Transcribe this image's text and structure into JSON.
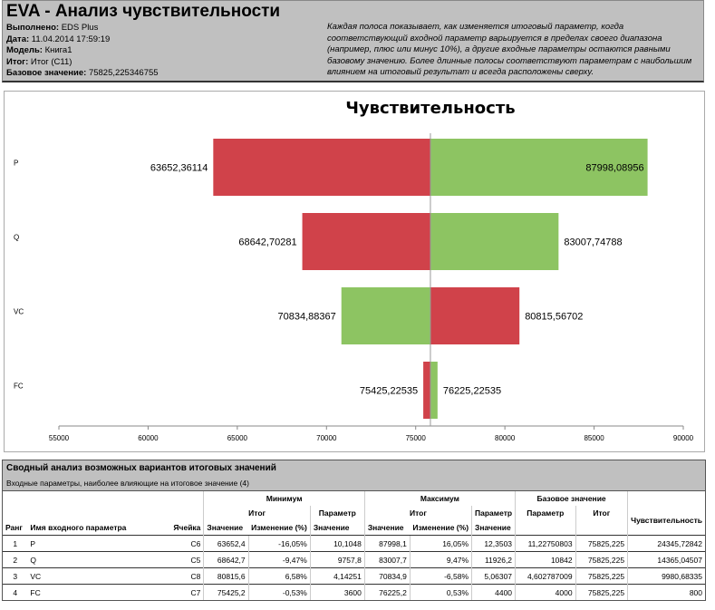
{
  "header": {
    "title": "EVA - Анализ чувствительности",
    "meta": [
      {
        "label": "Выполнено:",
        "value": "EDS Plus"
      },
      {
        "label": "Дата:",
        "value": "11.04.2014 17:59:19"
      },
      {
        "label": "Модель:",
        "value": "Книга1"
      },
      {
        "label": "Итог:",
        "value": "Итог (C11)"
      },
      {
        "label": "Базовое значение:",
        "value": "75825,225346755"
      }
    ],
    "description": "Каждая полоса показывает, как изменяется итоговый параметр, когда соответствующий входной параметр варьируется в пределах своего диапазона (например, плюс или минус 10%), а другие входные параметры остаются равными базовому значению. Более длинные полосы соответствуют параметрам с наибольшим влиянием на итоговый результат и всегда расположены сверху."
  },
  "chart_data": {
    "type": "bar",
    "title": "Чувствительность",
    "base": 75825.225,
    "xlim": [
      55000,
      90000
    ],
    "xticks": [
      "55000",
      "60000",
      "65000",
      "70000",
      "75000",
      "80000",
      "85000",
      "90000"
    ],
    "categories": [
      "P",
      "Q",
      "VC",
      "FC"
    ],
    "left": [
      {
        "value": 63652.36114,
        "label": "63652,36114",
        "color": "#d0424a"
      },
      {
        "value": 68642.70281,
        "label": "68642,70281",
        "color": "#d0424a"
      },
      {
        "value": 70834.88367,
        "label": "70834,88367",
        "color": "#8dc462"
      },
      {
        "value": 75425.22535,
        "label": "75425,22535",
        "color": "#d0424a"
      }
    ],
    "right": [
      {
        "value": 87998.08956,
        "label": "87998,08956",
        "color": "#8dc462"
      },
      {
        "value": 83007.74788,
        "label": "83007,74788",
        "color": "#8dc462"
      },
      {
        "value": 80815.56702,
        "label": "80815,56702",
        "color": "#d0424a"
      },
      {
        "value": 76225.22535,
        "label": "76225,22535",
        "color": "#8dc462"
      }
    ]
  },
  "table": {
    "title": "Сводный анализ возможных вариантов итоговых значений",
    "subtitle": "Входные параметры, наиболее влияющие на итоговое значение (4)",
    "h": {
      "min": "Минимум",
      "max": "Максимум",
      "base": "Базовое значение",
      "itog": "Итог",
      "param": "Параметр",
      "sens": "Чувствительность",
      "rank": "Ранг",
      "name": "Имя входного параметра",
      "cell": "Ячейка",
      "value": "Значение",
      "change": "Изменение (%)"
    },
    "rows": [
      [
        "1",
        "P",
        "C6",
        "63652,4",
        "-16,05%",
        "10,1048",
        "87998,1",
        "16,05%",
        "12,3503",
        "11,22750803",
        "75825,225",
        "24345,72842"
      ],
      [
        "2",
        "Q",
        "C5",
        "68642,7",
        "-9,47%",
        "9757,8",
        "83007,7",
        "9,47%",
        "11926,2",
        "10842",
        "75825,225",
        "14365,04507"
      ],
      [
        "3",
        "VC",
        "C8",
        "80815,6",
        "6,58%",
        "4,14251",
        "70834,9",
        "-6,58%",
        "5,06307",
        "4,602787009",
        "75825,225",
        "9980,68335"
      ],
      [
        "4",
        "FC",
        "C7",
        "75425,2",
        "-0,53%",
        "3600",
        "76225,2",
        "0,53%",
        "4400",
        "4000",
        "75825,225",
        "800"
      ]
    ]
  }
}
